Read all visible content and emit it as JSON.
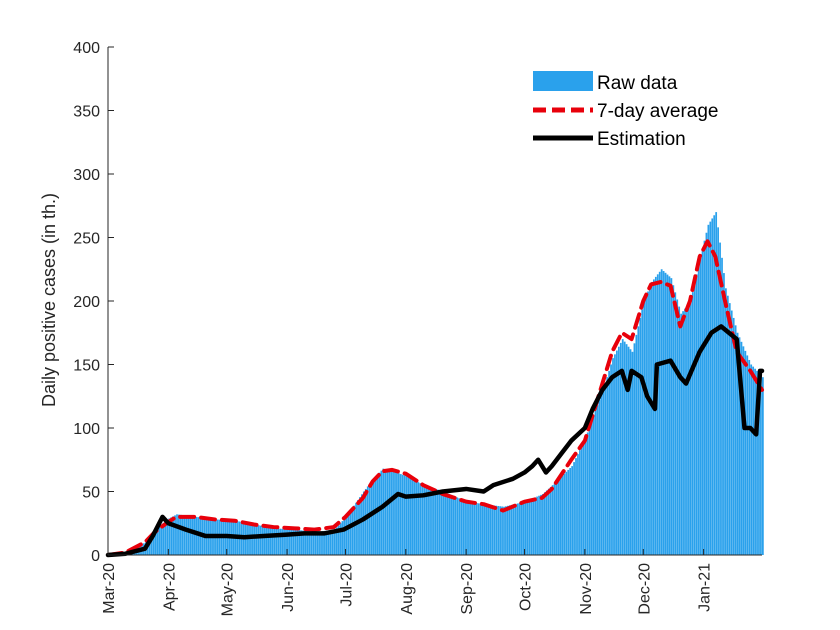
{
  "chart_data": {
    "type": "bar",
    "ylabel": "Daily positive cases (in th.)",
    "xlabel": "",
    "ylim": [
      0,
      400
    ],
    "y_ticks": [
      0,
      50,
      100,
      150,
      200,
      250,
      300,
      350,
      400
    ],
    "x_tick_labels": [
      "Mar-20",
      "Apr-20",
      "May-20",
      "Jun-20",
      "Jul-20",
      "Aug-20",
      "Sep-20",
      "Oct-20",
      "Nov-20",
      "Dec-20",
      "Jan-21"
    ],
    "x_range": [
      "2020-03-01",
      "2021-01-31"
    ],
    "legend": {
      "placement": "top-right",
      "entries": [
        "Raw data",
        "7-day average",
        "Estimation"
      ]
    },
    "colors": {
      "raw": "#2aa1ec",
      "avg": "#e8000b",
      "est": "#000000",
      "axis": "#262626"
    },
    "series": [
      {
        "name": "Raw data",
        "kind": "bar",
        "x": [
          "2020-03-01",
          "2020-03-10",
          "2020-03-20",
          "2020-03-25",
          "2020-03-31",
          "2020-04-05",
          "2020-04-15",
          "2020-04-25",
          "2020-05-05",
          "2020-05-15",
          "2020-05-25",
          "2020-06-05",
          "2020-06-15",
          "2020-06-25",
          "2020-07-01",
          "2020-07-10",
          "2020-07-15",
          "2020-07-20",
          "2020-07-25",
          "2020-08-01",
          "2020-08-10",
          "2020-08-20",
          "2020-09-01",
          "2020-09-10",
          "2020-09-20",
          "2020-10-01",
          "2020-10-10",
          "2020-10-15",
          "2020-10-25",
          "2020-11-01",
          "2020-11-05",
          "2020-11-10",
          "2020-11-15",
          "2020-11-20",
          "2020-11-25",
          "2020-12-01",
          "2020-12-05",
          "2020-12-10",
          "2020-12-15",
          "2020-12-20",
          "2020-12-25",
          "2020-12-30",
          "2021-01-03",
          "2021-01-07",
          "2021-01-12",
          "2021-01-18",
          "2021-01-25",
          "2021-01-31"
        ],
        "y": [
          0,
          2,
          10,
          20,
          28,
          32,
          30,
          28,
          27,
          24,
          21,
          20,
          18,
          20,
          30,
          50,
          60,
          68,
          66,
          62,
          55,
          50,
          42,
          40,
          38,
          42,
          48,
          55,
          70,
          92,
          110,
          130,
          155,
          170,
          160,
          200,
          215,
          225,
          218,
          190,
          200,
          235,
          260,
          270,
          210,
          175,
          150,
          140
        ]
      },
      {
        "name": "7-day average",
        "kind": "line",
        "x": [
          "2020-03-01",
          "2020-03-10",
          "2020-03-20",
          "2020-03-25",
          "2020-03-31",
          "2020-04-05",
          "2020-04-15",
          "2020-04-25",
          "2020-05-05",
          "2020-05-15",
          "2020-05-25",
          "2020-06-05",
          "2020-06-15",
          "2020-06-25",
          "2020-07-01",
          "2020-07-10",
          "2020-07-15",
          "2020-07-20",
          "2020-07-25",
          "2020-08-01",
          "2020-08-10",
          "2020-08-20",
          "2020-09-01",
          "2020-09-10",
          "2020-09-20",
          "2020-10-01",
          "2020-10-10",
          "2020-10-15",
          "2020-10-25",
          "2020-11-01",
          "2020-11-05",
          "2020-11-10",
          "2020-11-15",
          "2020-11-20",
          "2020-11-25",
          "2020-12-01",
          "2020-12-05",
          "2020-12-10",
          "2020-12-15",
          "2020-12-20",
          "2020-12-25",
          "2020-12-30",
          "2021-01-03",
          "2021-01-07",
          "2021-01-12",
          "2021-01-18",
          "2021-01-25",
          "2021-01-31"
        ],
        "y": [
          0,
          2,
          10,
          18,
          25,
          30,
          30,
          28,
          27,
          24,
          22,
          21,
          20,
          22,
          30,
          45,
          58,
          66,
          67,
          64,
          55,
          48,
          42,
          40,
          35,
          42,
          45,
          52,
          75,
          90,
          110,
          135,
          160,
          175,
          170,
          200,
          213,
          215,
          212,
          180,
          200,
          235,
          247,
          235,
          200,
          160,
          145,
          130
        ]
      },
      {
        "name": "Estimation",
        "kind": "line",
        "x": [
          "2020-03-01",
          "2020-03-10",
          "2020-03-20",
          "2020-03-24",
          "2020-03-29",
          "2020-04-01",
          "2020-04-10",
          "2020-04-20",
          "2020-05-01",
          "2020-05-10",
          "2020-05-20",
          "2020-06-01",
          "2020-06-10",
          "2020-06-20",
          "2020-06-30",
          "2020-07-10",
          "2020-07-20",
          "2020-07-28",
          "2020-08-01",
          "2020-08-10",
          "2020-08-20",
          "2020-09-01",
          "2020-09-10",
          "2020-09-15",
          "2020-09-25",
          "2020-10-01",
          "2020-10-05",
          "2020-10-08",
          "2020-10-12",
          "2020-10-15",
          "2020-10-20",
          "2020-10-25",
          "2020-11-01",
          "2020-11-05",
          "2020-11-10",
          "2020-11-15",
          "2020-11-20",
          "2020-11-23",
          "2020-11-25",
          "2020-11-30",
          "2020-12-03",
          "2020-12-07",
          "2020-12-08",
          "2020-12-15",
          "2020-12-20",
          "2020-12-23",
          "2020-12-30",
          "2021-01-05",
          "2021-01-10",
          "2021-01-18",
          "2021-01-22",
          "2021-01-25",
          "2021-01-28",
          "2021-01-30",
          "2021-01-31"
        ],
        "y": [
          0,
          1,
          5,
          15,
          30,
          25,
          20,
          15,
          15,
          14,
          15,
          16,
          17,
          17,
          20,
          28,
          38,
          48,
          46,
          47,
          50,
          52,
          50,
          55,
          60,
          65,
          70,
          75,
          65,
          70,
          80,
          90,
          100,
          115,
          130,
          140,
          145,
          130,
          145,
          140,
          125,
          115,
          150,
          153,
          140,
          135,
          160,
          175,
          180,
          170,
          100,
          100,
          95,
          145,
          145
        ]
      }
    ]
  }
}
